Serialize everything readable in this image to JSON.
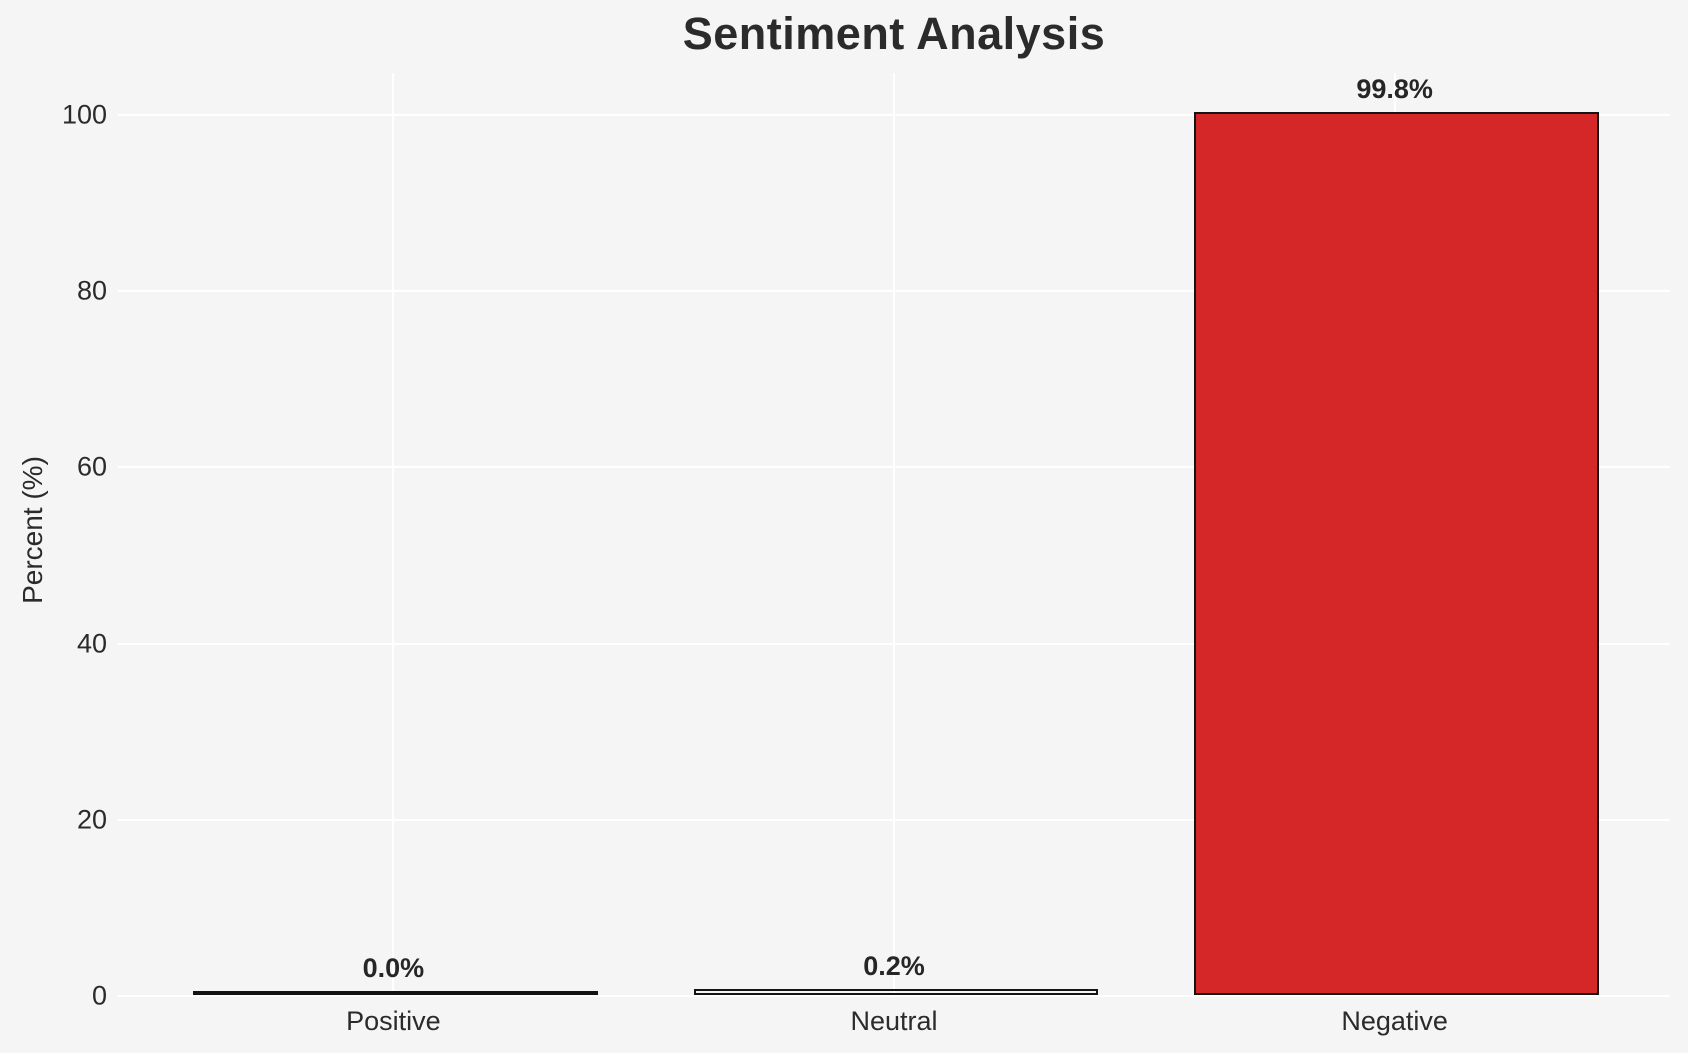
{
  "figure": {
    "background_color": "#f5f5f6",
    "text_color": "#2b2b2b"
  },
  "chart_data": {
    "type": "bar",
    "title": "Sentiment Analysis",
    "xlabel": "",
    "ylabel": "Percent (%)",
    "categories": [
      "Positive",
      "Neutral",
      "Negative"
    ],
    "values": [
      0.0,
      0.2,
      99.8
    ],
    "value_labels": [
      "0.0%",
      "0.2%",
      "99.8%"
    ],
    "bar_fill_colors": [
      "transparent",
      "transparent",
      "#d62728"
    ],
    "bar_edge_color": "#141414",
    "yticks": [
      0,
      20,
      40,
      60,
      80,
      100
    ],
    "ylim": [
      0,
      104.8
    ],
    "grid": "on",
    "gridline_color": "#ffffff",
    "legend": "none"
  }
}
